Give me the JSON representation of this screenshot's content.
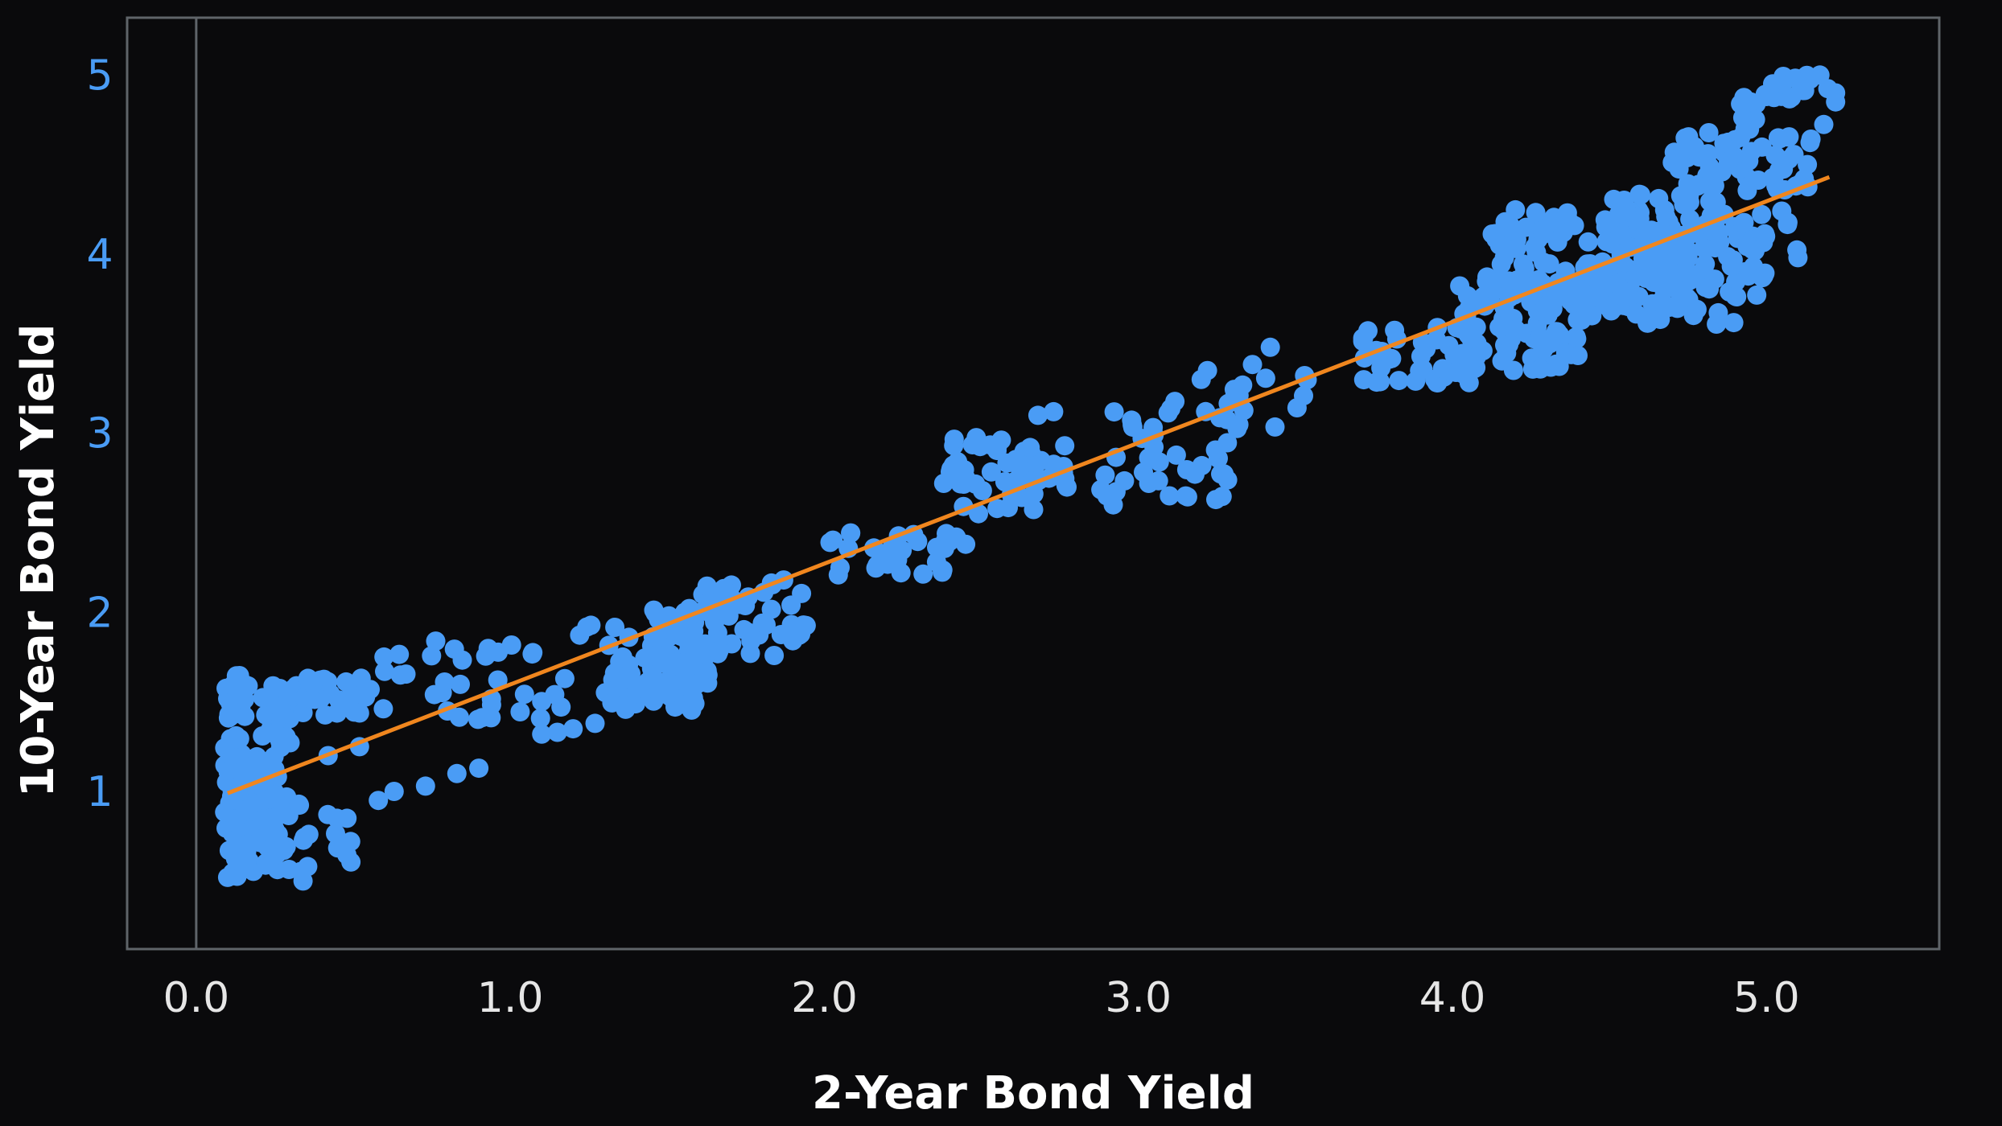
{
  "chart_data": {
    "type": "scatter",
    "title": "",
    "xlabel": "2-Year Bond Yield",
    "ylabel": "10-Year Bond Yield",
    "xlim": [
      -0.22,
      5.55
    ],
    "ylim": [
      0.12,
      5.32
    ],
    "x_ticks": [
      0.0,
      1.0,
      2.0,
      3.0,
      4.0,
      5.0
    ],
    "x_tick_labels": [
      "0.0",
      "1.0",
      "2.0",
      "3.0",
      "4.0",
      "5.0"
    ],
    "y_ticks": [
      1,
      2,
      3,
      4,
      5
    ],
    "y_tick_labels": [
      "1",
      "2",
      "3",
      "4",
      "5"
    ],
    "grid": false,
    "zero_line": true,
    "colors": {
      "background": "#0a0a0c",
      "frame": "#5f6469",
      "points": "#4a9cf5",
      "trend": "#f0861e",
      "x_tick_labels": "#e6e6e6",
      "y_tick_labels": "#4a9cf5",
      "axis_labels": "#ffffff"
    },
    "trend_line": {
      "x": [
        0.1,
        5.2
      ],
      "y": [
        0.99,
        4.43
      ]
    },
    "clusters": [
      {
        "x_range": [
          0.09,
          0.15
        ],
        "y_range": [
          0.52,
          1.65
        ],
        "count": 70
      },
      {
        "x_range": [
          0.12,
          0.3
        ],
        "y_range": [
          0.55,
          1.0
        ],
        "count": 70
      },
      {
        "x_range": [
          0.15,
          0.3
        ],
        "y_range": [
          1.05,
          1.6
        ],
        "count": 40
      },
      {
        "x_range": [
          0.25,
          0.55
        ],
        "y_range": [
          1.42,
          1.64
        ],
        "count": 40
      },
      {
        "x_range": [
          0.3,
          0.5
        ],
        "y_range": [
          0.55,
          1.0
        ],
        "count": 14
      },
      {
        "x_range": [
          0.55,
          1.2
        ],
        "y_range": [
          1.4,
          1.85
        ],
        "count": 35
      },
      {
        "x_range": [
          1.2,
          1.4
        ],
        "y_range": [
          1.72,
          1.95
        ],
        "count": 8
      },
      {
        "x_range": [
          1.3,
          1.6
        ],
        "y_range": [
          1.45,
          1.78
        ],
        "count": 70
      },
      {
        "x_range": [
          1.45,
          1.65
        ],
        "y_range": [
          1.6,
          2.05
        ],
        "count": 50
      },
      {
        "x_range": [
          1.6,
          1.95
        ],
        "y_range": [
          1.75,
          2.2
        ],
        "count": 50
      },
      {
        "x_range": [
          2.0,
          2.4
        ],
        "y_range": [
          2.2,
          2.45
        ],
        "count": 30
      },
      {
        "x_range": [
          2.4,
          2.8
        ],
        "y_range": [
          2.55,
          3.0
        ],
        "count": 50
      },
      {
        "x_range": [
          2.85,
          3.3
        ],
        "y_range": [
          2.6,
          3.2
        ],
        "count": 40
      },
      {
        "x_range": [
          3.3,
          3.55
        ],
        "y_range": [
          3.0,
          3.4
        ],
        "count": 14
      },
      {
        "x_range": [
          3.7,
          4.1
        ],
        "y_range": [
          3.28,
          3.6
        ],
        "count": 45
      },
      {
        "x_range": [
          4.0,
          4.4
        ],
        "y_range": [
          3.35,
          3.85
        ],
        "count": 80
      },
      {
        "x_range": [
          4.1,
          4.7
        ],
        "y_range": [
          3.7,
          4.25
        ],
        "count": 120
      },
      {
        "x_range": [
          4.5,
          4.85
        ],
        "y_range": [
          4.0,
          4.35
        ],
        "count": 40
      },
      {
        "x_range": [
          4.4,
          5.0
        ],
        "y_range": [
          3.6,
          3.95
        ],
        "count": 60
      },
      {
        "x_range": [
          4.6,
          5.0
        ],
        "y_range": [
          3.8,
          4.15
        ],
        "count": 40
      },
      {
        "x_range": [
          4.8,
          5.1
        ],
        "y_range": [
          4.0,
          4.25
        ],
        "count": 20
      },
      {
        "x_range": [
          4.7,
          5.15
        ],
        "y_range": [
          4.35,
          4.7
        ],
        "count": 60
      },
      {
        "x_range": [
          4.9,
          5.2
        ],
        "y_range": [
          4.65,
          5.0
        ],
        "count": 25
      }
    ],
    "points": [
      {
        "x": 0.1,
        "y": 0.52
      },
      {
        "x": 0.34,
        "y": 0.5
      },
      {
        "x": 0.47,
        "y": 0.71
      },
      {
        "x": 0.48,
        "y": 0.85
      },
      {
        "x": 0.9,
        "y": 1.13
      },
      {
        "x": 0.83,
        "y": 1.1
      },
      {
        "x": 0.73,
        "y": 1.03
      },
      {
        "x": 0.63,
        "y": 1.0
      },
      {
        "x": 0.58,
        "y": 0.95
      },
      {
        "x": 0.52,
        "y": 1.25
      },
      {
        "x": 0.42,
        "y": 1.2
      },
      {
        "x": 1.1,
        "y": 1.32
      },
      {
        "x": 1.15,
        "y": 1.33
      },
      {
        "x": 1.2,
        "y": 1.35
      },
      {
        "x": 1.27,
        "y": 1.38
      },
      {
        "x": 0.6,
        "y": 1.67
      },
      {
        "x": 0.65,
        "y": 1.65
      },
      {
        "x": 2.05,
        "y": 2.25
      },
      {
        "x": 2.38,
        "y": 2.72
      },
      {
        "x": 2.45,
        "y": 2.75
      },
      {
        "x": 2.42,
        "y": 2.42
      },
      {
        "x": 2.45,
        "y": 2.38
      },
      {
        "x": 2.55,
        "y": 2.58
      },
      {
        "x": 2.68,
        "y": 3.1
      },
      {
        "x": 2.73,
        "y": 3.12
      },
      {
        "x": 2.92,
        "y": 2.6
      },
      {
        "x": 2.9,
        "y": 2.65
      },
      {
        "x": 3.2,
        "y": 3.3
      },
      {
        "x": 3.22,
        "y": 3.35
      },
      {
        "x": 3.42,
        "y": 3.48
      },
      {
        "x": 4.15,
        "y": 4.05
      },
      {
        "x": 4.23,
        "y": 3.92
      },
      {
        "x": 4.18,
        "y": 3.85
      },
      {
        "x": 5.1,
        "y": 3.98
      },
      {
        "x": 5.12,
        "y": 4.95
      },
      {
        "x": 5.14,
        "y": 4.98
      },
      {
        "x": 5.17,
        "y": 5.0
      },
      {
        "x": 5.22,
        "y": 4.9
      },
      {
        "x": 5.22,
        "y": 4.85
      },
      {
        "x": 5.05,
        "y": 4.95
      },
      {
        "x": 5.0,
        "y": 4.88
      },
      {
        "x": 4.95,
        "y": 4.85
      },
      {
        "x": 5.12,
        "y": 4.42
      },
      {
        "x": 5.13,
        "y": 4.5
      },
      {
        "x": 4.88,
        "y": 4.52
      },
      {
        "x": 4.75,
        "y": 4.35
      },
      {
        "x": 4.3,
        "y": 3.7
      },
      {
        "x": 4.05,
        "y": 3.55
      },
      {
        "x": 3.72,
        "y": 3.42
      }
    ]
  }
}
